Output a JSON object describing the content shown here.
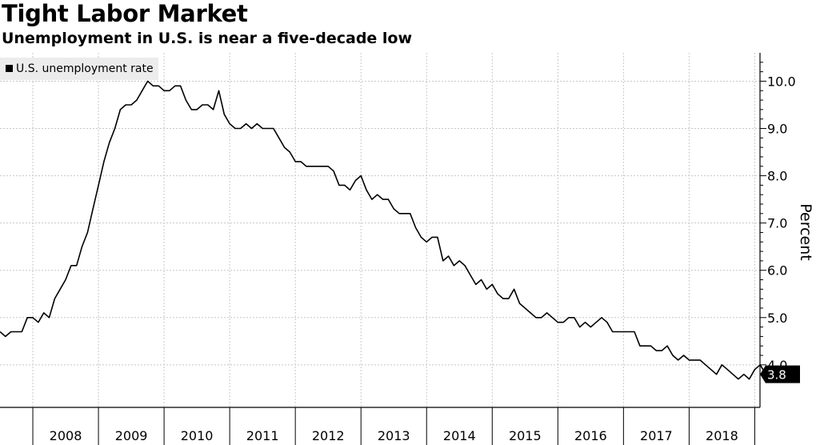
{
  "chart_data": {
    "type": "line",
    "title": "Tight Labor Market",
    "subtitle": "Unemployment in U.S. is near a five-decade low",
    "xlabel": "",
    "ylabel": "Percent",
    "legend": {
      "entries": [
        "U.S. unemployment rate"
      ],
      "placement": "top-left"
    },
    "x_tick_labels": [
      "2008",
      "2009",
      "2010",
      "2011",
      "2012",
      "2013",
      "2014",
      "2015",
      "2016",
      "2017",
      "2018"
    ],
    "y_tick_labels": [
      "4.0",
      "5.0",
      "6.0",
      "7.0",
      "8.0",
      "9.0",
      "10.0"
    ],
    "y_ticks": [
      4,
      5,
      6,
      7,
      8,
      9,
      10
    ],
    "ylim": [
      3.1,
      10.6
    ],
    "xlim": [
      2007.5,
      2019.08
    ],
    "last_value_label": "3.8",
    "grid": true,
    "series": [
      {
        "name": "U.S. unemployment rate",
        "start": "2007-07",
        "frequency": "monthly",
        "values": [
          4.7,
          4.6,
          4.7,
          4.7,
          4.7,
          5.0,
          5.0,
          4.9,
          5.1,
          5.0,
          5.4,
          5.6,
          5.8,
          6.1,
          6.1,
          6.5,
          6.8,
          7.3,
          7.8,
          8.3,
          8.7,
          9.0,
          9.4,
          9.5,
          9.5,
          9.6,
          9.8,
          10.0,
          9.9,
          9.9,
          9.8,
          9.8,
          9.9,
          9.9,
          9.6,
          9.4,
          9.4,
          9.5,
          9.5,
          9.4,
          9.8,
          9.3,
          9.1,
          9.0,
          9.0,
          9.1,
          9.0,
          9.1,
          9.0,
          9.0,
          9.0,
          8.8,
          8.6,
          8.5,
          8.3,
          8.3,
          8.2,
          8.2,
          8.2,
          8.2,
          8.2,
          8.1,
          7.8,
          7.8,
          7.7,
          7.9,
          8.0,
          7.7,
          7.5,
          7.6,
          7.5,
          7.5,
          7.3,
          7.2,
          7.2,
          7.2,
          6.9,
          6.7,
          6.6,
          6.7,
          6.7,
          6.2,
          6.3,
          6.1,
          6.2,
          6.1,
          5.9,
          5.7,
          5.8,
          5.6,
          5.7,
          5.5,
          5.4,
          5.4,
          5.6,
          5.3,
          5.2,
          5.1,
          5.0,
          5.0,
          5.1,
          5.0,
          4.9,
          4.9,
          5.0,
          5.0,
          4.8,
          4.9,
          4.8,
          4.9,
          5.0,
          4.9,
          4.7,
          4.7,
          4.7,
          4.7,
          4.7,
          4.4,
          4.4,
          4.4,
          4.3,
          4.3,
          4.4,
          4.2,
          4.1,
          4.2,
          4.1,
          4.1,
          4.1,
          4.0,
          3.9,
          3.8,
          4.0,
          3.9,
          3.8,
          3.7,
          3.8,
          3.7,
          3.9,
          4.0,
          3.8
        ]
      }
    ]
  }
}
